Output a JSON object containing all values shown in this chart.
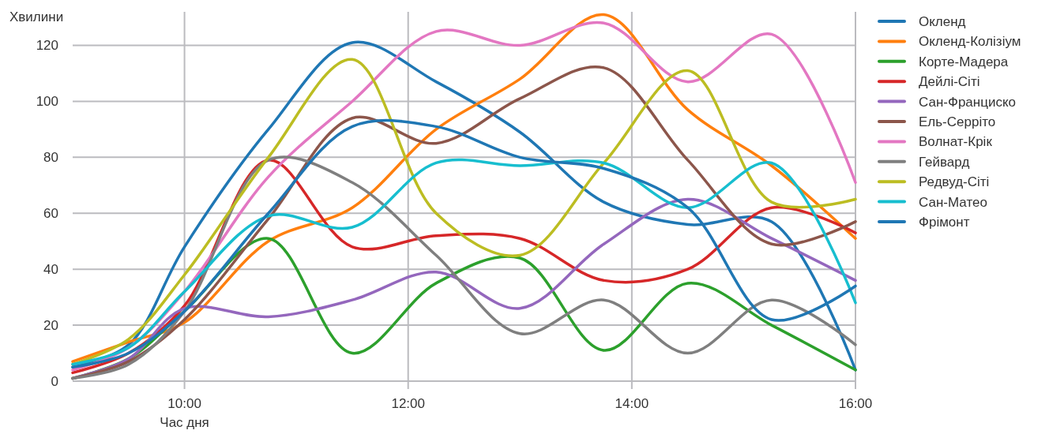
{
  "chart_data": {
    "type": "line",
    "xlabel": "Час дня",
    "ylabel": "Хвилини",
    "x": [
      9,
      9.5,
      10,
      10.75,
      11.5,
      12.25,
      13,
      13.75,
      14.5,
      15.25,
      16
    ],
    "xlim": [
      9,
      16
    ],
    "xticks": [
      {
        "value": 10,
        "label": "10:00"
      },
      {
        "value": 12,
        "label": "12:00"
      },
      {
        "value": 14,
        "label": "14:00"
      },
      {
        "value": 16,
        "label": "16:00"
      }
    ],
    "ylim": [
      0,
      132
    ],
    "yticks": [
      0,
      20,
      40,
      60,
      80,
      100,
      120
    ],
    "grid": true,
    "legend": "right",
    "marker": "none",
    "line_style": "solid",
    "series": [
      {
        "name": "Окленд",
        "color": "#1f77b4",
        "values": [
          5,
          13,
          48,
          90,
          121,
          107,
          89,
          64,
          56,
          57,
          4
        ]
      },
      {
        "name": "Окленд-Колізіум",
        "color": "#ff7f0e",
        "values": [
          7,
          14,
          21,
          50,
          62,
          90,
          108,
          131,
          97,
          77,
          51
        ]
      },
      {
        "name": "Корте-Мадера",
        "color": "#2ca02c",
        "values": [
          1,
          8,
          25,
          51,
          10,
          35,
          44,
          11,
          35,
          20,
          4
        ]
      },
      {
        "name": "Дейлі-Сіті",
        "color": "#d62728",
        "values": [
          3,
          10,
          27,
          79,
          48,
          52,
          51,
          36,
          40,
          62,
          53
        ]
      },
      {
        "name": "Сан-Франциско",
        "color": "#9467bd",
        "values": [
          1,
          8,
          26,
          23,
          29,
          39,
          26,
          49,
          65,
          51,
          36
        ]
      },
      {
        "name": "Ель-Серріто",
        "color": "#8c564b",
        "values": [
          1,
          7,
          22,
          58,
          94,
          85,
          101,
          112,
          79,
          49,
          57
        ]
      },
      {
        "name": "Волнат-Крік",
        "color": "#e377c2",
        "values": [
          4,
          12,
          32,
          73,
          100,
          125,
          120,
          128,
          107,
          124,
          71
        ]
      },
      {
        "name": "Гейвард",
        "color": "#7f7f7f",
        "values": [
          1,
          6,
          25,
          79,
          71,
          45,
          17,
          29,
          10,
          29,
          13
        ]
      },
      {
        "name": "Редвуд-Сіті",
        "color": "#bcbd22",
        "values": [
          6,
          15,
          38,
          80,
          115,
          60,
          45,
          78,
          111,
          64,
          65
        ]
      },
      {
        "name": "Сан-Матео",
        "color": "#17becf",
        "values": [
          6,
          12,
          32,
          59,
          55,
          78,
          77,
          78,
          62,
          78,
          28
        ]
      },
      {
        "name": "Фрімонт",
        "color": "#1f77b4",
        "values": [
          5,
          10,
          25,
          60,
          91,
          91,
          80,
          76,
          62,
          22,
          34
        ]
      }
    ]
  }
}
